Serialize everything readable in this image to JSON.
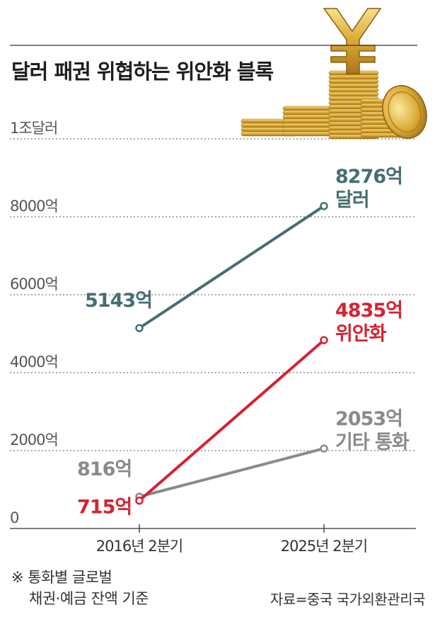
{
  "title": "달러 패권 위협하는 위안화 블록",
  "footnote": [
    "※ 통화별 글로벌",
    "채권·예금 잔액 기준"
  ],
  "source": "자료=중국 국가외환관리국",
  "colors": {
    "dollar": "#466e74",
    "yuan": "#d52331",
    "other": "#8a8a8a",
    "grid": "#555555",
    "text": "#333333",
    "coin": "#d4a432"
  },
  "chart_data": {
    "type": "line",
    "title": "달러 패권 위협하는 위안화 블록",
    "x": [
      "2016년 2분기",
      "2025년 2분기"
    ],
    "y_ticks": [
      {
        "value": 0,
        "label": "0"
      },
      {
        "value": 2000,
        "label": "2000억"
      },
      {
        "value": 4000,
        "label": "4000억"
      },
      {
        "value": 6000,
        "label": "6000억"
      },
      {
        "value": 8000,
        "label": "8000억"
      },
      {
        "value": 10000,
        "label": "1조달러"
      }
    ],
    "ylim": [
      0,
      10000
    ],
    "unit": "억 달러",
    "grid": true,
    "series": [
      {
        "key": "dollar",
        "name": "달러",
        "values": [
          5143,
          8276
        ],
        "labels": [
          "5143억",
          "8276억"
        ]
      },
      {
        "key": "yuan",
        "name": "위안화",
        "values": [
          715,
          4835
        ],
        "labels": [
          "715억",
          "4835억"
        ]
      },
      {
        "key": "other",
        "name": "기타 통화",
        "values": [
          816,
          2053
        ],
        "labels": [
          "816억",
          "2053억"
        ]
      }
    ]
  }
}
